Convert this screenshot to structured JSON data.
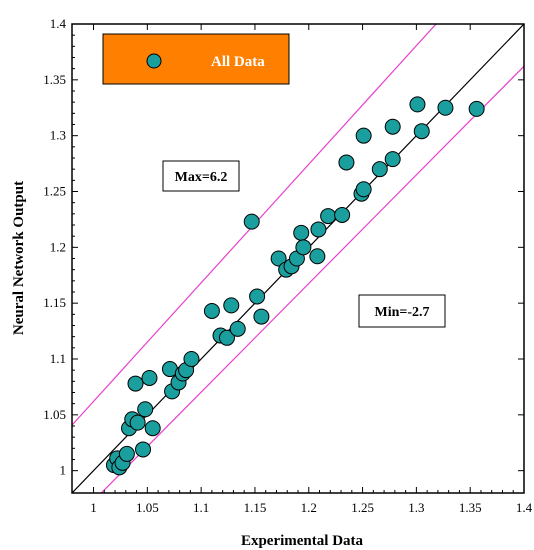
{
  "chart_data": {
    "type": "scatter",
    "xlabel": "Experimental Data",
    "ylabel": "Neural Network Output",
    "xlim": [
      0.98,
      1.4
    ],
    "ylim": [
      0.98,
      1.4
    ],
    "x_ticks": [
      "1",
      "1.05",
      "1.1",
      "1.15",
      "1.2",
      "1.25",
      "1.3",
      "1.35",
      "1.4"
    ],
    "y_ticks": [
      "1",
      "1.05",
      "1.1",
      "1.15",
      "1.2",
      "1.25",
      "1.3",
      "1.35",
      "1.4"
    ],
    "grid": false,
    "legend": {
      "position": "top-left",
      "label": "All Data"
    },
    "max_annotation": "Max=6.2",
    "min_annotation": "Min=-2.7",
    "colors": {
      "marker": "#1a9e9e",
      "marker_edge": "#000000",
      "bound_lines": "#e83fd0",
      "fit_line": "#000000",
      "legend_bg": "#ff7f00"
    },
    "reference_lines": [
      {
        "name": "y = x",
        "slope": 1.0,
        "intercept": 0.0,
        "color": "#000000"
      },
      {
        "name": "upper bound",
        "slope": 1.062,
        "intercept": 0.0,
        "color": "#e83fd0"
      },
      {
        "name": "lower bound",
        "slope": 0.973,
        "intercept": 0.0,
        "color": "#e83fd0"
      }
    ],
    "series": [
      {
        "name": "All Data",
        "points": [
          [
            1.019,
            1.005
          ],
          [
            1.022,
            1.011
          ],
          [
            1.024,
            1.003
          ],
          [
            1.027,
            1.007
          ],
          [
            1.031,
            1.015
          ],
          [
            1.033,
            1.038
          ],
          [
            1.036,
            1.046
          ],
          [
            1.039,
            1.078
          ],
          [
            1.041,
            1.043
          ],
          [
            1.046,
            1.019
          ],
          [
            1.048,
            1.055
          ],
          [
            1.052,
            1.083
          ],
          [
            1.055,
            1.038
          ],
          [
            1.071,
            1.091
          ],
          [
            1.073,
            1.071
          ],
          [
            1.079,
            1.079
          ],
          [
            1.083,
            1.087
          ],
          [
            1.086,
            1.09
          ],
          [
            1.091,
            1.1
          ],
          [
            1.11,
            1.143
          ],
          [
            1.118,
            1.121
          ],
          [
            1.124,
            1.119
          ],
          [
            1.128,
            1.148
          ],
          [
            1.134,
            1.127
          ],
          [
            1.147,
            1.223
          ],
          [
            1.152,
            1.156
          ],
          [
            1.156,
            1.138
          ],
          [
            1.172,
            1.19
          ],
          [
            1.179,
            1.18
          ],
          [
            1.184,
            1.183
          ],
          [
            1.189,
            1.19
          ],
          [
            1.193,
            1.213
          ],
          [
            1.195,
            1.2
          ],
          [
            1.208,
            1.192
          ],
          [
            1.209,
            1.216
          ],
          [
            1.218,
            1.228
          ],
          [
            1.231,
            1.229
          ],
          [
            1.235,
            1.276
          ],
          [
            1.249,
            1.248
          ],
          [
            1.251,
            1.3
          ],
          [
            1.251,
            1.252
          ],
          [
            1.266,
            1.27
          ],
          [
            1.278,
            1.279
          ],
          [
            1.278,
            1.308
          ],
          [
            1.301,
            1.328
          ],
          [
            1.305,
            1.304
          ],
          [
            1.327,
            1.325
          ],
          [
            1.356,
            1.324
          ]
        ]
      }
    ]
  }
}
